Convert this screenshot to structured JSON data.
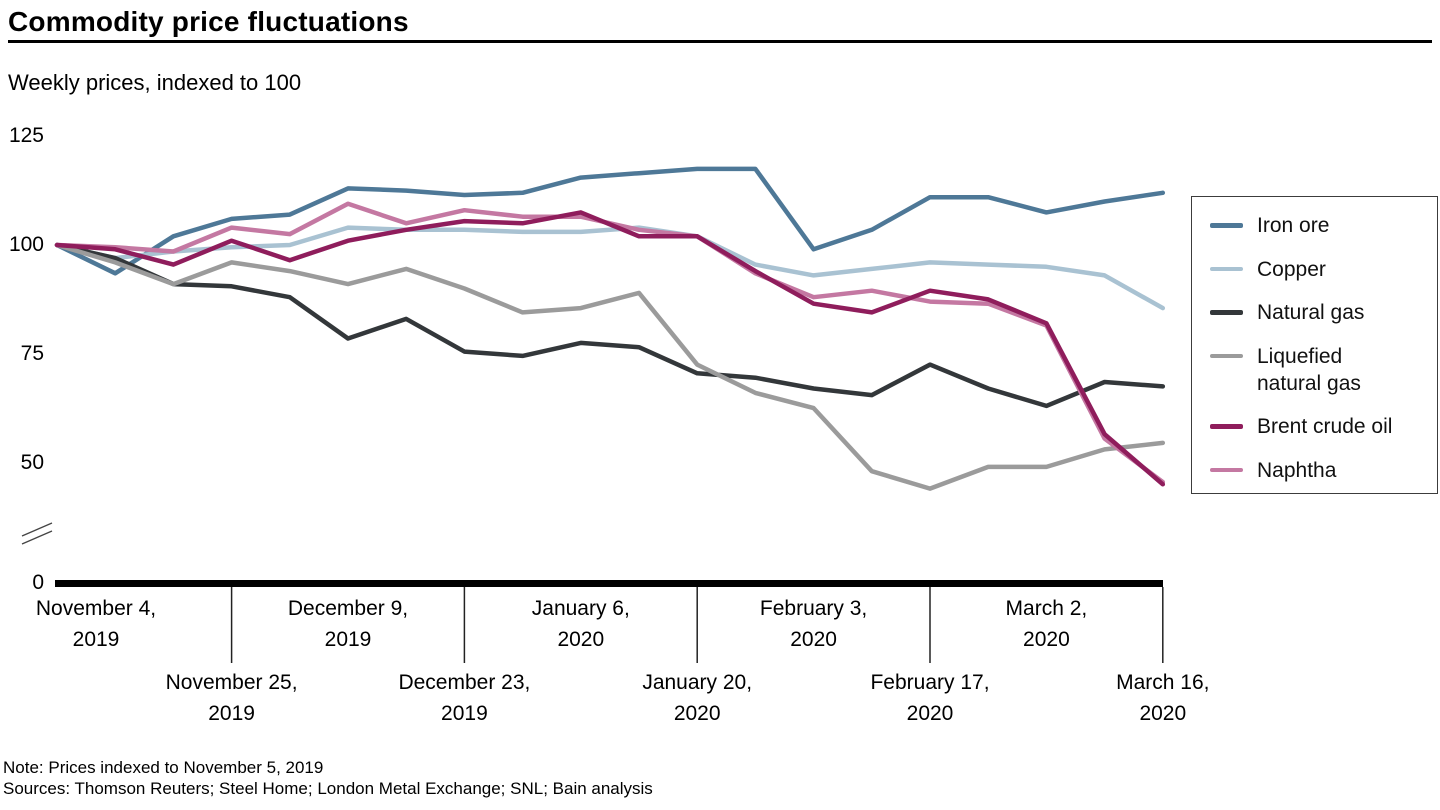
{
  "title": "Commodity price fluctuations",
  "subtitle": "Weekly prices, indexed to 100",
  "note": "Note: Prices indexed to November 5, 2019",
  "sources": "Sources: Thomson Reuters; Steel Home; London Metal Exchange; SNL; Bain analysis",
  "chart_data": {
    "type": "line",
    "title": "Commodity price fluctuations",
    "subtitle": "Weekly prices, indexed to 100",
    "x": [
      "November 4, 2019",
      "November 11, 2019",
      "November 18, 2019",
      "November 25, 2019",
      "December 2, 2019",
      "December 9, 2019",
      "December 16, 2019",
      "December 23, 2019",
      "December 30, 2019",
      "January 6, 2020",
      "January 13, 2020",
      "January 20, 2020",
      "January 27, 2020",
      "February 3, 2020",
      "February 10, 2020",
      "February 17, 2020",
      "February 24, 2020",
      "March 2, 2020",
      "March 9, 2020",
      "March 16, 2020"
    ],
    "ylim": [
      0,
      125
    ],
    "y_ticks": [
      125,
      100,
      75,
      50,
      0
    ],
    "axis_break_between": [
      0,
      50
    ],
    "grid": false,
    "legend_position": "right",
    "series": [
      {
        "name": "Iron ore",
        "color": "#4e7897",
        "values": [
          100,
          93.5,
          102,
          106,
          107,
          113,
          112.5,
          111.5,
          112,
          115.5,
          116.5,
          117.5,
          117.5,
          99,
          103.5,
          111,
          111,
          107.5,
          110,
          112
        ]
      },
      {
        "name": "Copper",
        "color": "#a9c2d2",
        "values": [
          100,
          97,
          98.5,
          99.5,
          100,
          104,
          103.5,
          103.5,
          103,
          103,
          104,
          102,
          95.5,
          93,
          94.5,
          96,
          95.5,
          95,
          93,
          85.5
        ]
      },
      {
        "name": "Natural gas",
        "color": "#33373a",
        "values": [
          100,
          97,
          91,
          90.5,
          88,
          78.5,
          83,
          75.5,
          74.5,
          77.5,
          76.5,
          70.5,
          69.5,
          67,
          65.5,
          72.5,
          67,
          63,
          68.5,
          67.5
        ]
      },
      {
        "name": "Liquefied\nnatural gas",
        "color": "#9b9b9b",
        "values": [
          100,
          96,
          91,
          96,
          94,
          91,
          94.5,
          90,
          84.5,
          85.5,
          89,
          72.5,
          66,
          62.5,
          48,
          44,
          49,
          49,
          53,
          54.5
        ]
      },
      {
        "name": "Brent crude oil",
        "color": "#8f1d5c",
        "values": [
          100,
          99,
          95.5,
          101,
          96.5,
          101,
          103.5,
          105.5,
          105,
          107.5,
          102,
          102,
          94,
          86.5,
          84.5,
          89.5,
          87.5,
          82,
          56.5,
          45
        ]
      },
      {
        "name": "Naphtha",
        "color": "#c478a2",
        "values": [
          100,
          99.5,
          98.5,
          104,
          102.5,
          109.5,
          105,
          108,
          106.5,
          106.5,
          103.5,
          102,
          93.5,
          88,
          89.5,
          87,
          86.5,
          81.5,
          55.5,
          45.5
        ]
      }
    ],
    "draw_order": [
      0,
      1,
      2,
      3,
      5,
      4
    ],
    "x_labels_row1": [
      {
        "index": 0,
        "label": "November 4,\n2019"
      },
      {
        "index": 5,
        "label": "December 9,\n2019"
      },
      {
        "index": 9,
        "label": "January 6,\n2020"
      },
      {
        "index": 13,
        "label": "February 3,\n2020"
      },
      {
        "index": 17,
        "label": "March 2,\n2020"
      }
    ],
    "x_labels_row2": [
      {
        "index": 3,
        "label": "November 25,\n2019"
      },
      {
        "index": 7,
        "label": "December 23,\n2019"
      },
      {
        "index": 11,
        "label": "January 20,\n2020"
      },
      {
        "index": 15,
        "label": "February 17,\n2020"
      },
      {
        "index": 19,
        "label": "March 16,\n2020"
      }
    ]
  }
}
